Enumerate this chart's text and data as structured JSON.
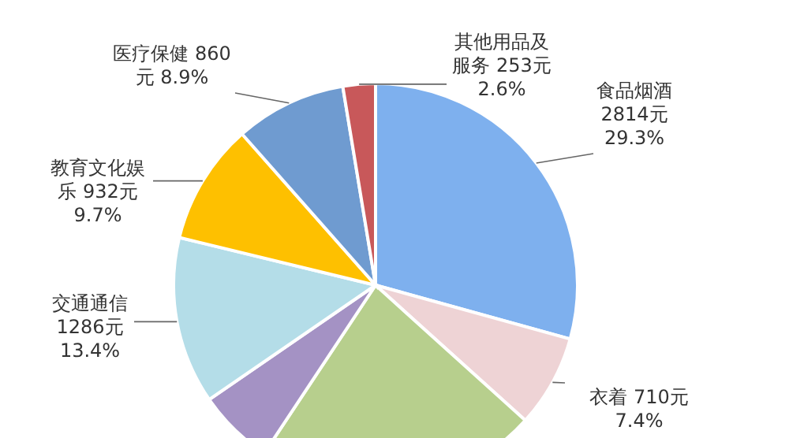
{
  "chart_data": {
    "type": "pie",
    "categories": [
      "食品烟酒",
      "衣着",
      null,
      null,
      "交通通信",
      "教育文化娱乐",
      "医疗保健",
      "其他用品及服务"
    ],
    "values": [
      29.3,
      7.4,
      22.6,
      6.1,
      13.4,
      9.7,
      8.9,
      2.6
    ],
    "value_labels": [
      "2814元 29.3%",
      "710元 7.4%",
      null,
      null,
      "1286元 13.4%",
      "932元 9.7%",
      "860元 8.9%",
      "253元 2.6%"
    ],
    "colors": [
      "#7eb0ee",
      "#eed3d5",
      "#b7cf8d",
      "#a492c4",
      "#b4dde8",
      "#fec000",
      "#6f9bd0",
      "#c8585a"
    ]
  }
}
